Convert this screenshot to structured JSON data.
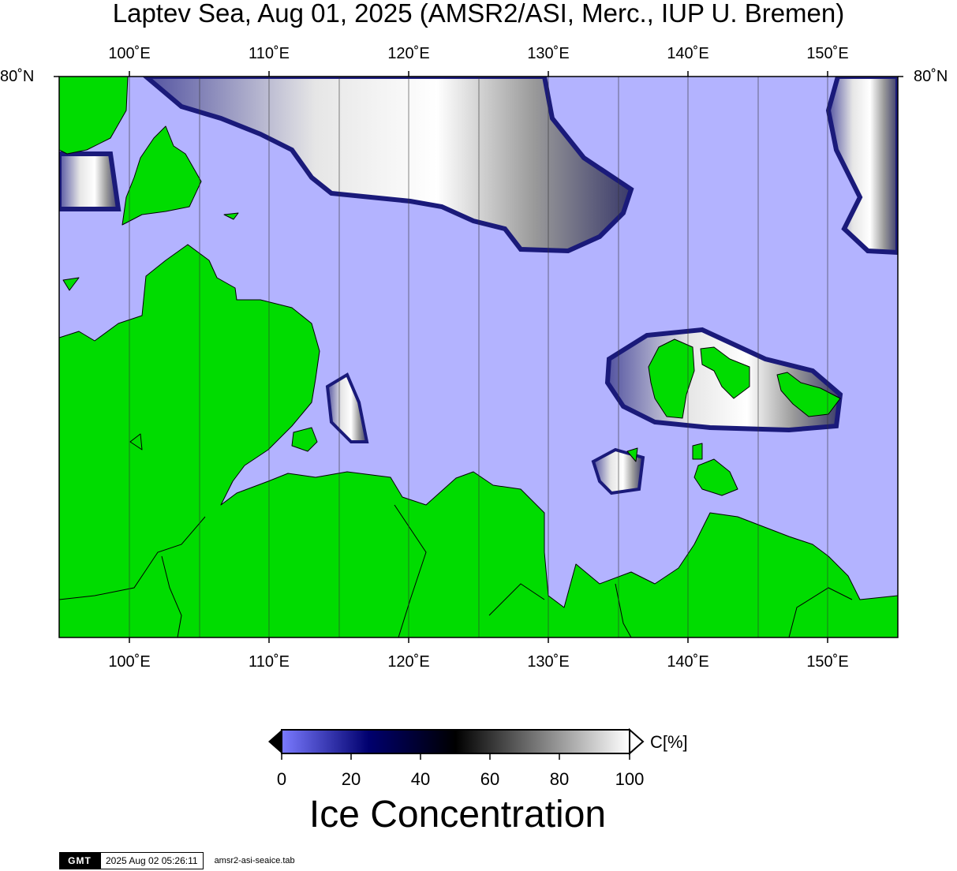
{
  "title": "Laptev Sea, Aug 01, 2025 (AMSR2/ASI, Merc., IUP U. Bremen)",
  "map": {
    "lon_labels": [
      "100˚E",
      "110˚E",
      "120˚E",
      "130˚E",
      "140˚E",
      "150˚E"
    ],
    "lon_range": [
      95,
      155
    ],
    "lat_label_left": "80˚N",
    "lat_label_right": "80˚N",
    "colors": {
      "ocean_open_water": "#b3b3ff",
      "land": "#00dc00",
      "ice_dark": "#000033",
      "ice_bright": "#ffffff"
    }
  },
  "colorbar": {
    "ticks": [
      "0",
      "20",
      "40",
      "60",
      "80",
      "100"
    ],
    "unit": "C[%]",
    "title": "Ice Concentration",
    "stops": [
      "#7a7aff",
      "#00006e",
      "#000000",
      "#808080",
      "#ffffff"
    ]
  },
  "footer": {
    "logo": "GMT",
    "timestamp": "2025 Aug 02 05:26:11",
    "datafile": "amsr2-asi-seaice.tab"
  }
}
